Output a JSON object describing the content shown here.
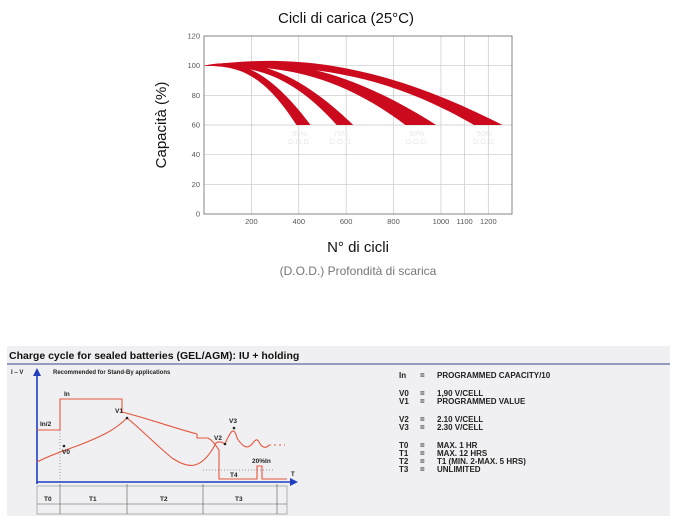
{
  "chart_data": [
    {
      "type": "area",
      "title": "Cicli di carica (25°C)",
      "xlabel": "N° di cicli",
      "ylabel": "Capacità (%)",
      "subtitle": "(D.O.D.) Profondità di scarica",
      "xlim": [
        0,
        1300
      ],
      "ylim": [
        0,
        120
      ],
      "x_ticks": [
        200,
        400,
        600,
        800,
        1000,
        1100,
        1200
      ],
      "y_ticks": [
        0,
        20,
        40,
        60,
        80,
        100,
        120
      ],
      "grid": true,
      "color": "#cc0a1e",
      "series": [
        {
          "label": "95%",
          "end_low": 390,
          "end_high": 450,
          "peak": 102
        },
        {
          "label": "75%",
          "end_low": 560,
          "end_high": 630,
          "peak": 102.5
        },
        {
          "label": "60%",
          "end_low": 850,
          "end_high": 980,
          "peak": 103.5
        },
        {
          "label": "50%",
          "end_low": 1140,
          "end_high": 1260,
          "peak": 105
        }
      ],
      "dod_text": "D.O.D."
    },
    {
      "type": "line",
      "title": "Charge cycle for sealed batteries (GEL/AGM): IU + holding",
      "subtitle": "Recommended for Stand-By applications",
      "y_axis_label": "I – V",
      "x_axis_label": "T",
      "annotations": [
        "In",
        "In/2",
        "V0",
        "V1",
        "V2",
        "V3",
        "20%In",
        "T4"
      ],
      "phases": [
        "T0",
        "T1",
        "T2",
        "T3"
      ],
      "color": "#e4573f"
    }
  ],
  "legend": [
    {
      "key": "In",
      "eq": "=",
      "value": "PROGRAMMED CAPACITY/10"
    },
    {
      "key": "V0",
      "eq": "=",
      "value": "1,90 V/CELL"
    },
    {
      "key": "V1",
      "eq": "=",
      "value": "PROGRAMMED VALUE"
    },
    {
      "key": "V2",
      "eq": "=",
      "value": "2.10 V/CELL"
    },
    {
      "key": "V3",
      "eq": "=",
      "value": "2.30 V/CELL"
    },
    {
      "key": "T0",
      "eq": "=",
      "value": "MAX. 1 HR"
    },
    {
      "key": "T1",
      "eq": "=",
      "value": "MAX. 12 HRS"
    },
    {
      "key": "T2",
      "eq": "=",
      "value": "T1 (MIN. 2-MAX. 5 HRS)"
    },
    {
      "key": "T3",
      "eq": "=",
      "value": "UNLIMITED"
    }
  ]
}
